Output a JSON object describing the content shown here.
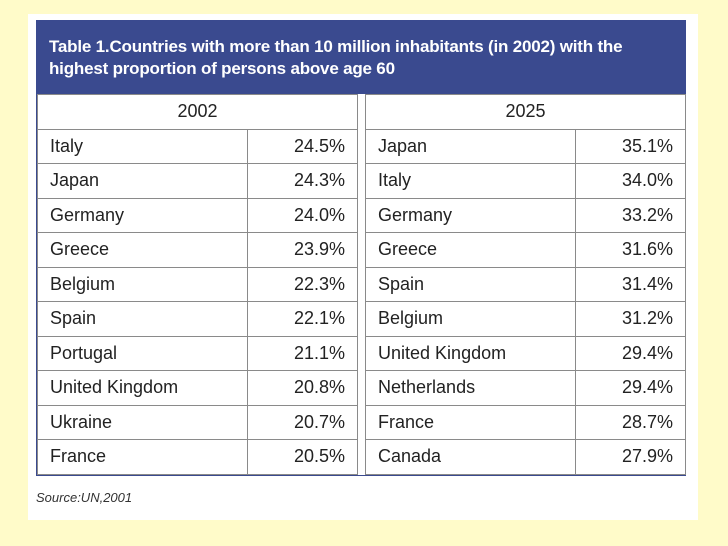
{
  "title": "Table 1.Countries with more than 10 million inhabitants (in 2002) with the highest proportion of persons above age 60",
  "headers": {
    "left": "2002",
    "right": "2025"
  },
  "rows": [
    {
      "c2002": "Italy",
      "p2002": "24.5%",
      "c2025": "Japan",
      "p2025": "35.1%"
    },
    {
      "c2002": "Japan",
      "p2002": "24.3%",
      "c2025": "Italy",
      "p2025": "34.0%"
    },
    {
      "c2002": "Germany",
      "p2002": "24.0%",
      "c2025": "Germany",
      "p2025": "33.2%"
    },
    {
      "c2002": "Greece",
      "p2002": "23.9%",
      "c2025": "Greece",
      "p2025": "31.6%"
    },
    {
      "c2002": "Belgium",
      "p2002": "22.3%",
      "c2025": "Spain",
      "p2025": "31.4%"
    },
    {
      "c2002": "Spain",
      "p2002": "22.1%",
      "c2025": "Belgium",
      "p2025": "31.2%"
    },
    {
      "c2002": "Portugal",
      "p2002": "21.1%",
      "c2025": "United Kingdom",
      "p2025": "29.4%"
    },
    {
      "c2002": "United Kingdom",
      "p2002": "20.8%",
      "c2025": "Netherlands",
      "p2025": "29.4%"
    },
    {
      "c2002": "Ukraine",
      "p2002": "20.7%",
      "c2025": "France",
      "p2025": "28.7%"
    },
    {
      "c2002": "France",
      "p2002": "20.5%",
      "c2025": "Canada",
      "p2025": "27.9%"
    }
  ],
  "source": "Source:UN,2001",
  "colors": {
    "title_bg": "#3a4a8f",
    "page_bg": "#fffbc9"
  }
}
